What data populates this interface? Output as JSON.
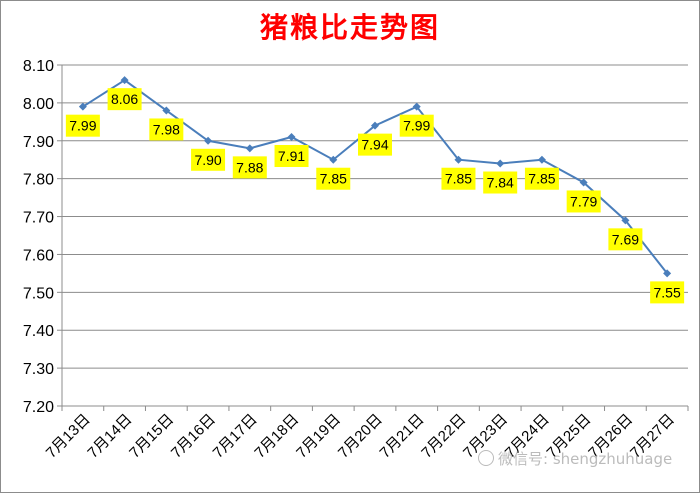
{
  "chart_data": {
    "type": "line",
    "title": "猪粮比走势图",
    "categories": [
      "7月13日",
      "7月14日",
      "7月15日",
      "7月16日",
      "7月17日",
      "7月18日",
      "7月19日",
      "7月20日",
      "7月21日",
      "7月22日",
      "7月23日",
      "7月24日",
      "7月25日",
      "7月26日",
      "7月27日"
    ],
    "values": [
      7.99,
      8.06,
      7.98,
      7.9,
      7.88,
      7.91,
      7.85,
      7.94,
      7.99,
      7.85,
      7.84,
      7.85,
      7.79,
      7.69,
      7.55
    ],
    "data_labels": [
      "7.99",
      "8.06",
      "7.98",
      "7.90",
      "7.88",
      "7.91",
      "7.85",
      "7.94",
      "7.99",
      "7.85",
      "7.84",
      "7.85",
      "7.79",
      "7.69",
      "7.55"
    ],
    "ylim": [
      7.2,
      8.1
    ],
    "yticks": [
      "7.20",
      "7.30",
      "7.40",
      "7.50",
      "7.60",
      "7.70",
      "7.80",
      "7.90",
      "8.00",
      "8.10"
    ],
    "grid": true,
    "line_color": "#4a7ebb",
    "label_bg_color": "#ffff00",
    "title_color": "#ff0000"
  },
  "watermark": "微信号: shengzhuhuage"
}
